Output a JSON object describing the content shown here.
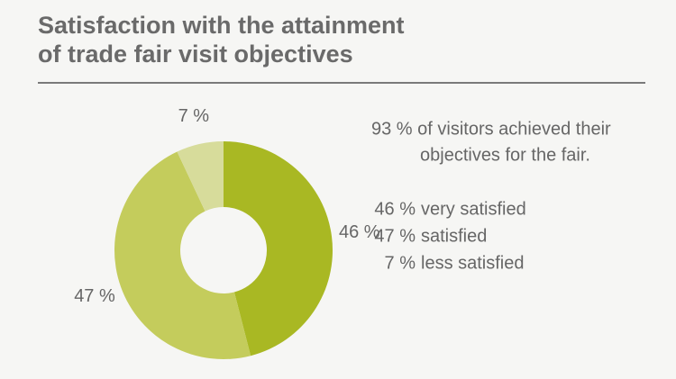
{
  "chart_data": {
    "type": "donut",
    "title": [
      "Satisfaction with the attainment",
      "of trade fair visit objectives"
    ],
    "categories": [
      "very satisfied",
      "satisfied",
      "less satisfied"
    ],
    "values": [
      46,
      47,
      7
    ],
    "value_labels": [
      "46 %",
      "47 %",
      "7 %"
    ],
    "colors": [
      "#a9b823",
      "#c4cc5c",
      "#d7dc9b"
    ],
    "annotation": [
      "93 % of visitors achieved their",
      "objectives for the fair."
    ]
  }
}
